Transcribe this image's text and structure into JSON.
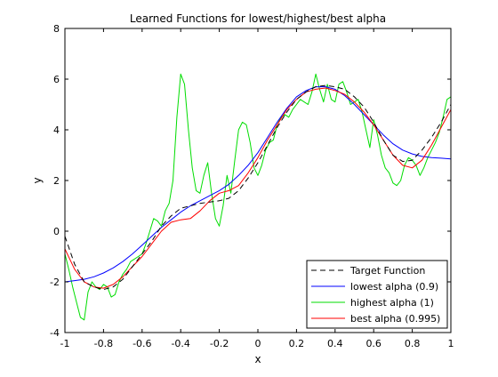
{
  "chart_data": {
    "type": "line",
    "title": "Learned Functions for lowest/highest/best alpha",
    "xlabel": "x",
    "ylabel": "y",
    "xlim": [
      -1,
      1
    ],
    "ylim": [
      -4,
      8
    ],
    "xticks": [
      -1,
      -0.8,
      -0.6,
      -0.4,
      -0.2,
      0,
      0.2,
      0.4,
      0.6,
      0.8,
      1
    ],
    "xtick_labels": [
      "-1",
      "-0.8",
      "-0.6",
      "-0.4",
      "-0.2",
      "0",
      "0.2",
      "0.4",
      "0.6",
      "0.8",
      "1"
    ],
    "yticks": [
      -4,
      -2,
      0,
      2,
      4,
      6,
      8
    ],
    "ytick_labels": [
      "-4",
      "-2",
      "0",
      "2",
      "4",
      "6",
      "8"
    ],
    "grid": false,
    "legend_position": "bottom-right",
    "series": [
      {
        "name": "Target Function",
        "color": "#000000",
        "dash": "dashed",
        "x": [
          -1,
          -0.95,
          -0.9,
          -0.85,
          -0.8,
          -0.75,
          -0.7,
          -0.65,
          -0.6,
          -0.55,
          -0.5,
          -0.45,
          -0.4,
          -0.35,
          -0.3,
          -0.25,
          -0.2,
          -0.15,
          -0.1,
          -0.05,
          0,
          0.05,
          0.1,
          0.15,
          0.2,
          0.25,
          0.3,
          0.35,
          0.4,
          0.45,
          0.5,
          0.55,
          0.6,
          0.65,
          0.7,
          0.75,
          0.8,
          0.85,
          0.9,
          0.95,
          1
        ],
        "y": [
          -0.2,
          -1.3,
          -2.0,
          -2.2,
          -2.3,
          -2.2,
          -1.9,
          -1.4,
          -0.9,
          -0.4,
          0.2,
          0.6,
          0.9,
          1.0,
          1.1,
          1.15,
          1.2,
          1.3,
          1.6,
          2.1,
          2.7,
          3.4,
          4.1,
          4.7,
          5.2,
          5.5,
          5.7,
          5.75,
          5.7,
          5.6,
          5.3,
          4.9,
          4.3,
          3.6,
          3.0,
          2.75,
          2.8,
          3.2,
          3.7,
          4.3,
          5.0
        ]
      },
      {
        "name": "lowest alpha (0.9)",
        "color": "#0000ff",
        "dash": "solid",
        "x": [
          -1,
          -0.95,
          -0.9,
          -0.85,
          -0.8,
          -0.75,
          -0.7,
          -0.65,
          -0.6,
          -0.55,
          -0.5,
          -0.45,
          -0.4,
          -0.35,
          -0.3,
          -0.25,
          -0.2,
          -0.15,
          -0.1,
          -0.05,
          0,
          0.05,
          0.1,
          0.15,
          0.2,
          0.25,
          0.3,
          0.35,
          0.4,
          0.45,
          0.5,
          0.55,
          0.6,
          0.65,
          0.7,
          0.75,
          0.8,
          0.85,
          0.9,
          0.95,
          1
        ],
        "y": [
          -2.0,
          -1.95,
          -1.9,
          -1.8,
          -1.65,
          -1.45,
          -1.2,
          -0.9,
          -0.55,
          -0.2,
          0.15,
          0.45,
          0.75,
          1.0,
          1.2,
          1.4,
          1.6,
          1.85,
          2.2,
          2.6,
          3.1,
          3.7,
          4.3,
          4.85,
          5.3,
          5.55,
          5.7,
          5.7,
          5.6,
          5.35,
          5.0,
          4.6,
          4.2,
          3.8,
          3.45,
          3.2,
          3.05,
          2.95,
          2.9,
          2.88,
          2.85
        ]
      },
      {
        "name": "highest alpha (1)",
        "color": "#00dd00",
        "dash": "solid",
        "x": [
          -1,
          -0.98,
          -0.96,
          -0.94,
          -0.92,
          -0.9,
          -0.88,
          -0.86,
          -0.84,
          -0.82,
          -0.8,
          -0.78,
          -0.76,
          -0.74,
          -0.72,
          -0.7,
          -0.68,
          -0.66,
          -0.64,
          -0.62,
          -0.6,
          -0.58,
          -0.56,
          -0.54,
          -0.52,
          -0.5,
          -0.48,
          -0.46,
          -0.44,
          -0.42,
          -0.4,
          -0.38,
          -0.36,
          -0.34,
          -0.32,
          -0.3,
          -0.28,
          -0.26,
          -0.24,
          -0.22,
          -0.2,
          -0.18,
          -0.16,
          -0.14,
          -0.12,
          -0.1,
          -0.08,
          -0.06,
          -0.04,
          -0.02,
          0,
          0.02,
          0.04,
          0.06,
          0.08,
          0.1,
          0.12,
          0.14,
          0.16,
          0.18,
          0.2,
          0.22,
          0.24,
          0.26,
          0.28,
          0.3,
          0.32,
          0.34,
          0.36,
          0.38,
          0.4,
          0.42,
          0.44,
          0.46,
          0.48,
          0.5,
          0.52,
          0.54,
          0.56,
          0.58,
          0.6,
          0.62,
          0.64,
          0.66,
          0.68,
          0.7,
          0.72,
          0.74,
          0.76,
          0.78,
          0.8,
          0.82,
          0.84,
          0.86,
          0.88,
          0.9,
          0.92,
          0.94,
          0.96,
          0.98,
          1
        ],
        "y": [
          -0.9,
          -1.5,
          -2.2,
          -2.8,
          -3.4,
          -3.5,
          -2.4,
          -2.0,
          -2.2,
          -2.3,
          -2.1,
          -2.2,
          -2.6,
          -2.5,
          -2.0,
          -1.7,
          -1.5,
          -1.2,
          -1.1,
          -1.0,
          -0.9,
          -0.5,
          0.0,
          0.5,
          0.4,
          0.2,
          0.8,
          1.1,
          2.0,
          4.5,
          6.2,
          5.8,
          4.0,
          2.5,
          1.6,
          1.5,
          2.2,
          2.7,
          1.5,
          0.5,
          0.2,
          1.0,
          2.2,
          1.5,
          2.8,
          4.0,
          4.3,
          4.2,
          3.5,
          2.5,
          2.2,
          2.6,
          3.2,
          3.5,
          3.6,
          4.2,
          4.5,
          4.6,
          4.5,
          4.8,
          5.0,
          5.2,
          5.1,
          5.0,
          5.5,
          6.2,
          5.6,
          5.1,
          5.8,
          5.2,
          5.1,
          5.8,
          5.9,
          5.5,
          5.0,
          5.1,
          5.2,
          4.7,
          4.0,
          3.3,
          4.4,
          3.8,
          3.0,
          2.5,
          2.3,
          1.9,
          1.8,
          2.0,
          2.6,
          2.9,
          2.8,
          2.6,
          2.2,
          2.5,
          2.9,
          3.2,
          3.5,
          3.9,
          4.5,
          5.2,
          5.3
        ]
      },
      {
        "name": "best alpha (0.995)",
        "color": "#ff0000",
        "dash": "solid",
        "x": [
          -1,
          -0.95,
          -0.9,
          -0.85,
          -0.8,
          -0.75,
          -0.7,
          -0.65,
          -0.6,
          -0.55,
          -0.5,
          -0.45,
          -0.4,
          -0.35,
          -0.3,
          -0.25,
          -0.2,
          -0.15,
          -0.1,
          -0.05,
          0,
          0.05,
          0.1,
          0.15,
          0.2,
          0.25,
          0.3,
          0.35,
          0.4,
          0.45,
          0.5,
          0.55,
          0.6,
          0.65,
          0.7,
          0.75,
          0.8,
          0.85,
          0.9,
          0.95,
          1
        ],
        "y": [
          -0.7,
          -1.5,
          -2.0,
          -2.2,
          -2.25,
          -2.1,
          -1.8,
          -1.4,
          -1.0,
          -0.5,
          0.0,
          0.35,
          0.45,
          0.5,
          0.8,
          1.2,
          1.5,
          1.6,
          1.8,
          2.3,
          2.9,
          3.6,
          4.2,
          4.8,
          5.2,
          5.5,
          5.6,
          5.65,
          5.55,
          5.4,
          5.1,
          4.7,
          4.2,
          3.6,
          3.0,
          2.6,
          2.5,
          2.8,
          3.4,
          4.1,
          4.8
        ]
      }
    ]
  }
}
